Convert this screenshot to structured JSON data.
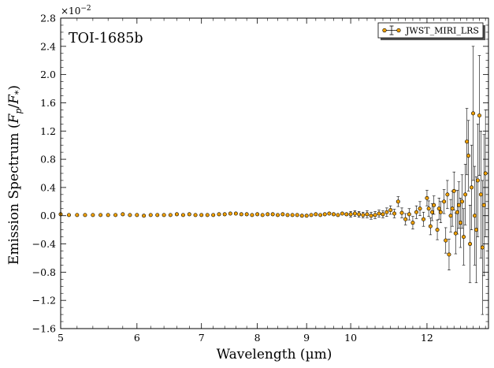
{
  "chart_data": {
    "type": "scatter",
    "annotation": "TOI-1685b",
    "xlabel": "Wavelength (µm)",
    "ylabel_main": "Emission Spectrum (",
    "ylabel_math": "F",
    "ylabel_sub1": "p",
    "ylabel_slash": "/",
    "ylabel_sub2": "*",
    "ylabel_close": ")",
    "scale_prefix": "×10",
    "scale_exp": "−2",
    "xscale": "log",
    "xlim": [
      5.0,
      13.9
    ],
    "ylim": [
      -1.6,
      2.8
    ],
    "grid": false,
    "legend_position": "top-right",
    "xticks": [
      "5",
      "6",
      "7",
      "8",
      "9",
      "10",
      "12"
    ],
    "xtick_values": [
      5,
      6,
      7,
      8,
      9,
      10,
      12
    ],
    "yticks": [
      "−1.6",
      "−1.2",
      "−0.8",
      "−0.4",
      "0.0",
      "0.4",
      "0.8",
      "1.2",
      "1.6",
      "2.0",
      "2.4",
      "2.8"
    ],
    "ytick_values": [
      -1.6,
      -1.2,
      -0.8,
      -0.4,
      0.0,
      0.4,
      0.8,
      1.2,
      1.6,
      2.0,
      2.4,
      2.8
    ],
    "colors": {
      "marker": "#f0a000",
      "edge": "#000000",
      "errorbar": "#000000"
    },
    "series": [
      {
        "name": "JWST_MIRI_LRS",
        "points": [
          [
            5.0,
            0.02,
            0.01
          ],
          [
            5.1,
            0.01,
            0.01
          ],
          [
            5.2,
            0.01,
            0.01
          ],
          [
            5.3,
            0.01,
            0.01
          ],
          [
            5.4,
            0.01,
            0.01
          ],
          [
            5.5,
            0.01,
            0.01
          ],
          [
            5.6,
            0.01,
            0.01
          ],
          [
            5.7,
            0.01,
            0.01
          ],
          [
            5.8,
            0.02,
            0.01
          ],
          [
            5.9,
            0.01,
            0.01
          ],
          [
            6.0,
            0.01,
            0.01
          ],
          [
            6.1,
            0.0,
            0.01
          ],
          [
            6.2,
            0.01,
            0.01
          ],
          [
            6.3,
            0.01,
            0.01
          ],
          [
            6.4,
            0.01,
            0.01
          ],
          [
            6.5,
            0.01,
            0.01
          ],
          [
            6.6,
            0.02,
            0.01
          ],
          [
            6.7,
            0.01,
            0.01
          ],
          [
            6.8,
            0.02,
            0.01
          ],
          [
            6.9,
            0.01,
            0.01
          ],
          [
            7.0,
            0.01,
            0.01
          ],
          [
            7.1,
            0.01,
            0.01
          ],
          [
            7.2,
            0.01,
            0.01
          ],
          [
            7.3,
            0.02,
            0.01
          ],
          [
            7.4,
            0.02,
            0.02
          ],
          [
            7.5,
            0.03,
            0.02
          ],
          [
            7.6,
            0.03,
            0.02
          ],
          [
            7.7,
            0.02,
            0.02
          ],
          [
            7.8,
            0.02,
            0.02
          ],
          [
            7.9,
            0.01,
            0.02
          ],
          [
            8.0,
            0.02,
            0.02
          ],
          [
            8.1,
            0.01,
            0.02
          ],
          [
            8.2,
            0.02,
            0.02
          ],
          [
            8.3,
            0.02,
            0.02
          ],
          [
            8.4,
            0.01,
            0.02
          ],
          [
            8.5,
            0.02,
            0.02
          ],
          [
            8.6,
            0.01,
            0.02
          ],
          [
            8.7,
            0.01,
            0.02
          ],
          [
            8.8,
            0.01,
            0.02
          ],
          [
            8.9,
            0.0,
            0.02
          ],
          [
            9.0,
            0.0,
            0.02
          ],
          [
            9.1,
            0.01,
            0.02
          ],
          [
            9.2,
            0.02,
            0.02
          ],
          [
            9.3,
            0.01,
            0.03
          ],
          [
            9.4,
            0.02,
            0.03
          ],
          [
            9.5,
            0.03,
            0.03
          ],
          [
            9.6,
            0.02,
            0.03
          ],
          [
            9.7,
            0.01,
            0.03
          ],
          [
            9.8,
            0.03,
            0.03
          ],
          [
            9.9,
            0.02,
            0.03
          ],
          [
            10.0,
            0.02,
            0.04
          ],
          [
            10.1,
            0.03,
            0.04
          ],
          [
            10.2,
            0.02,
            0.04
          ],
          [
            10.3,
            0.01,
            0.04
          ],
          [
            10.4,
            0.02,
            0.05
          ],
          [
            10.5,
            0.0,
            0.05
          ],
          [
            10.6,
            0.01,
            0.05
          ],
          [
            10.7,
            0.03,
            0.05
          ],
          [
            10.8,
            0.02,
            0.05
          ],
          [
            10.9,
            0.05,
            0.06
          ],
          [
            11.0,
            0.08,
            0.06
          ],
          [
            11.1,
            0.03,
            0.06
          ],
          [
            11.2,
            0.2,
            0.07
          ],
          [
            11.3,
            0.04,
            0.07
          ],
          [
            11.4,
            -0.05,
            0.08
          ],
          [
            11.5,
            0.02,
            0.08
          ],
          [
            11.6,
            -0.1,
            0.09
          ],
          [
            11.7,
            0.05,
            0.09
          ],
          [
            11.8,
            0.1,
            0.1
          ],
          [
            11.9,
            -0.05,
            0.1
          ],
          [
            12.0,
            0.25,
            0.11
          ],
          [
            12.05,
            0.1,
            0.11
          ],
          [
            12.1,
            -0.15,
            0.12
          ],
          [
            12.15,
            0.05,
            0.12
          ],
          [
            12.2,
            0.15,
            0.13
          ],
          [
            12.3,
            -0.2,
            0.14
          ],
          [
            12.35,
            0.1,
            0.15
          ],
          [
            12.4,
            0.05,
            0.15
          ],
          [
            12.5,
            0.2,
            0.17
          ],
          [
            12.55,
            -0.35,
            0.18
          ],
          [
            12.6,
            0.3,
            0.2
          ],
          [
            12.65,
            -0.55,
            0.22
          ],
          [
            12.7,
            0.0,
            0.23
          ],
          [
            12.75,
            0.1,
            0.25
          ],
          [
            12.8,
            0.35,
            0.27
          ],
          [
            12.85,
            -0.25,
            0.29
          ],
          [
            12.9,
            0.05,
            0.31
          ],
          [
            12.95,
            0.15,
            0.33
          ],
          [
            13.0,
            -0.1,
            0.35
          ],
          [
            13.05,
            0.2,
            0.38
          ],
          [
            13.1,
            -0.3,
            0.4
          ],
          [
            13.15,
            0.3,
            0.43
          ],
          [
            13.2,
            1.05,
            0.47
          ],
          [
            13.25,
            0.85,
            0.5
          ],
          [
            13.3,
            -0.4,
            0.55
          ],
          [
            13.35,
            0.4,
            0.6
          ],
          [
            13.4,
            1.45,
            0.95
          ],
          [
            13.45,
            0.0,
            0.7
          ],
          [
            13.5,
            -0.2,
            0.75
          ],
          [
            13.55,
            0.5,
            0.8
          ],
          [
            13.6,
            1.42,
            0.85
          ],
          [
            13.65,
            0.3,
            0.9
          ],
          [
            13.7,
            -0.45,
            0.95
          ],
          [
            13.75,
            0.15,
            1.0
          ],
          [
            13.8,
            0.6,
            0.9
          ]
        ]
      }
    ]
  }
}
